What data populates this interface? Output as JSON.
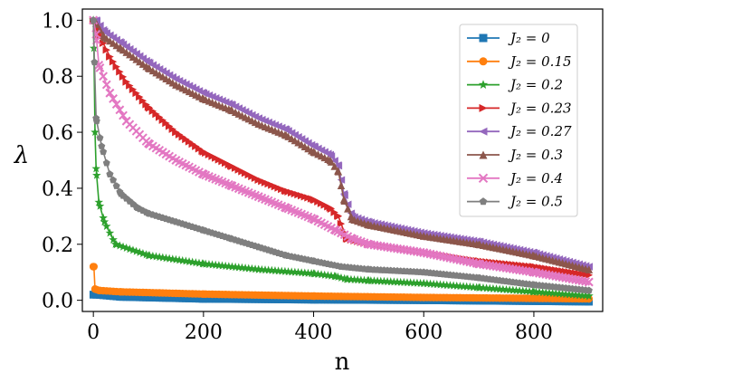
{
  "chart_data": {
    "type": "line",
    "title": "",
    "xlabel": "n",
    "ylabel": "λ",
    "xlim": [
      -20,
      925
    ],
    "ylim": [
      -0.04,
      1.04
    ],
    "xticks": [
      0,
      200,
      400,
      600,
      800
    ],
    "xtick_labels": [
      "0",
      "200",
      "400",
      "600",
      "800"
    ],
    "yticks": [
      0.0,
      0.2,
      0.4,
      0.6,
      0.8,
      1.0
    ],
    "ytick_labels": [
      "0.0",
      "0.2",
      "0.4",
      "0.6",
      "0.8",
      "1.0"
    ],
    "grid": false,
    "legend_position": "upper right",
    "series": [
      {
        "name": "J2=0",
        "legend_label": "J₂ = 0",
        "color": "#1f77b4",
        "marker": "square",
        "points": [
          [
            0,
            0.02
          ],
          [
            5,
            0.02
          ],
          [
            50,
            0.012
          ],
          [
            200,
            0.005
          ],
          [
            400,
            0.002
          ],
          [
            600,
            0.0
          ],
          [
            900,
            -0.005
          ]
        ]
      },
      {
        "name": "J2=0.15",
        "legend_label": "J₂ = 0.15",
        "color": "#ff7f0e",
        "marker": "circle",
        "points": [
          [
            0,
            0.12
          ],
          [
            1,
            0.12
          ],
          [
            3,
            0.04
          ],
          [
            10,
            0.035
          ],
          [
            50,
            0.03
          ],
          [
            200,
            0.022
          ],
          [
            400,
            0.015
          ],
          [
            600,
            0.01
          ],
          [
            900,
            0.005
          ]
        ]
      },
      {
        "name": "J2=0.2",
        "legend_label": "J₂ = 0.2",
        "color": "#2ca02c",
        "marker": "star",
        "points": [
          [
            0,
            1.0
          ],
          [
            1,
            0.9
          ],
          [
            3,
            0.6
          ],
          [
            5,
            0.47
          ],
          [
            10,
            0.35
          ],
          [
            20,
            0.28
          ],
          [
            40,
            0.2
          ],
          [
            100,
            0.16
          ],
          [
            200,
            0.13
          ],
          [
            300,
            0.11
          ],
          [
            400,
            0.095
          ],
          [
            440,
            0.085
          ],
          [
            460,
            0.075
          ],
          [
            500,
            0.07
          ],
          [
            600,
            0.06
          ],
          [
            700,
            0.045
          ],
          [
            800,
            0.03
          ],
          [
            900,
            0.015
          ]
        ]
      },
      {
        "name": "J2=0.23",
        "legend_label": "J₂ = 0.23",
        "color": "#d62728",
        "marker": "triangle-right",
        "points": [
          [
            0,
            1.0
          ],
          [
            10,
            0.95
          ],
          [
            30,
            0.87
          ],
          [
            60,
            0.78
          ],
          [
            100,
            0.69
          ],
          [
            150,
            0.6
          ],
          [
            200,
            0.53
          ],
          [
            250,
            0.48
          ],
          [
            300,
            0.43
          ],
          [
            350,
            0.39
          ],
          [
            400,
            0.36
          ],
          [
            430,
            0.33
          ],
          [
            445,
            0.3
          ],
          [
            460,
            0.22
          ],
          [
            500,
            0.2
          ],
          [
            600,
            0.17
          ],
          [
            700,
            0.14
          ],
          [
            800,
            0.12
          ],
          [
            900,
            0.09
          ]
        ]
      },
      {
        "name": "J2=0.27",
        "legend_label": "J₂ = 0.27",
        "color": "#9467bd",
        "marker": "triangle-left",
        "points": [
          [
            0,
            1.0
          ],
          [
            5,
            1.0
          ],
          [
            20,
            0.96
          ],
          [
            50,
            0.92
          ],
          [
            100,
            0.85
          ],
          [
            150,
            0.79
          ],
          [
            200,
            0.74
          ],
          [
            250,
            0.7
          ],
          [
            300,
            0.65
          ],
          [
            350,
            0.61
          ],
          [
            400,
            0.55
          ],
          [
            430,
            0.52
          ],
          [
            445,
            0.48
          ],
          [
            455,
            0.38
          ],
          [
            470,
            0.3
          ],
          [
            500,
            0.28
          ],
          [
            600,
            0.24
          ],
          [
            700,
            0.21
          ],
          [
            800,
            0.17
          ],
          [
            900,
            0.12
          ]
        ]
      },
      {
        "name": "J2=0.3",
        "legend_label": "J₂ = 0.3",
        "color": "#8c564b",
        "marker": "triangle-up",
        "points": [
          [
            0,
            1.0
          ],
          [
            5,
            0.99
          ],
          [
            20,
            0.94
          ],
          [
            50,
            0.9
          ],
          [
            100,
            0.83
          ],
          [
            150,
            0.77
          ],
          [
            200,
            0.72
          ],
          [
            250,
            0.68
          ],
          [
            300,
            0.63
          ],
          [
            350,
            0.59
          ],
          [
            400,
            0.53
          ],
          [
            430,
            0.5
          ],
          [
            445,
            0.46
          ],
          [
            455,
            0.36
          ],
          [
            470,
            0.29
          ],
          [
            500,
            0.27
          ],
          [
            600,
            0.23
          ],
          [
            700,
            0.2
          ],
          [
            800,
            0.16
          ],
          [
            900,
            0.11
          ]
        ]
      },
      {
        "name": "J2=0.4",
        "legend_label": "J₂ = 0.4",
        "color": "#e377c2",
        "marker": "x",
        "points": [
          [
            0,
            1.0
          ],
          [
            5,
            0.95
          ],
          [
            10,
            0.84
          ],
          [
            30,
            0.74
          ],
          [
            60,
            0.64
          ],
          [
            100,
            0.56
          ],
          [
            150,
            0.5
          ],
          [
            200,
            0.45
          ],
          [
            250,
            0.41
          ],
          [
            300,
            0.37
          ],
          [
            350,
            0.33
          ],
          [
            400,
            0.29
          ],
          [
            440,
            0.25
          ],
          [
            470,
            0.22
          ],
          [
            500,
            0.2
          ],
          [
            600,
            0.17
          ],
          [
            700,
            0.13
          ],
          [
            800,
            0.1
          ],
          [
            900,
            0.065
          ]
        ]
      },
      {
        "name": "J2=0.5",
        "legend_label": "J₂ = 0.5",
        "color": "#7f7f7f",
        "marker": "pentagon",
        "points": [
          [
            0,
            1.0
          ],
          [
            2,
            0.85
          ],
          [
            5,
            0.65
          ],
          [
            15,
            0.55
          ],
          [
            30,
            0.45
          ],
          [
            50,
            0.38
          ],
          [
            80,
            0.33
          ],
          [
            100,
            0.31
          ],
          [
            150,
            0.28
          ],
          [
            200,
            0.25
          ],
          [
            250,
            0.22
          ],
          [
            300,
            0.19
          ],
          [
            350,
            0.16
          ],
          [
            400,
            0.14
          ],
          [
            450,
            0.12
          ],
          [
            500,
            0.11
          ],
          [
            600,
            0.1
          ],
          [
            700,
            0.08
          ],
          [
            800,
            0.055
          ],
          [
            900,
            0.035
          ]
        ]
      }
    ]
  }
}
